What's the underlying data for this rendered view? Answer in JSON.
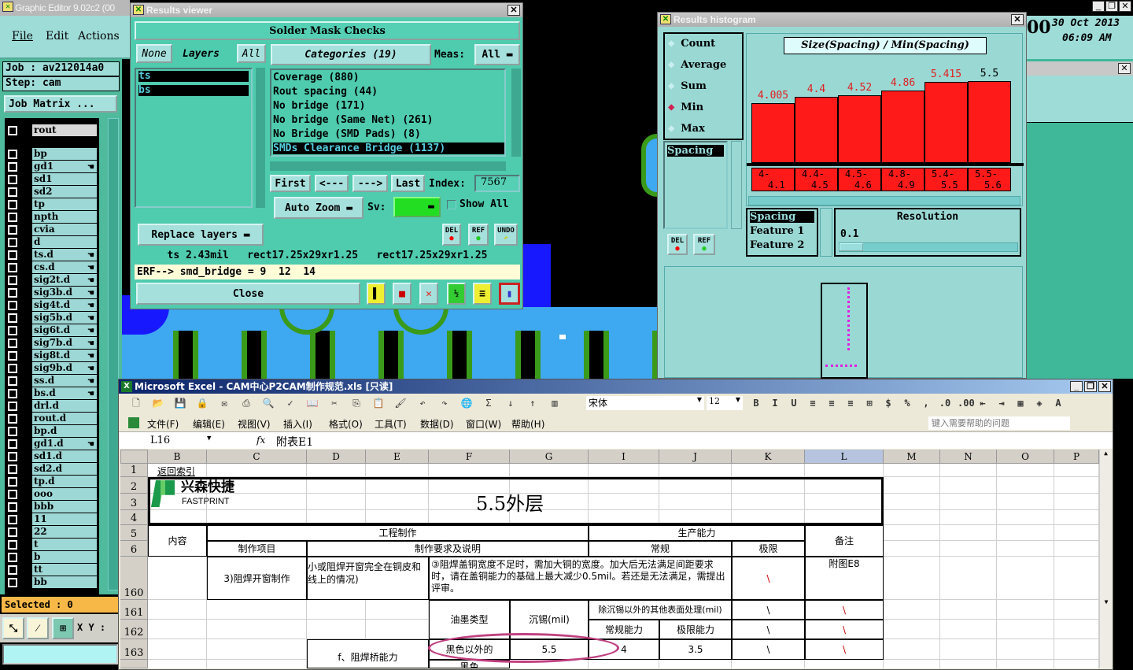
{
  "editor": {
    "title": "Graphic Editor 9.02c2 (00",
    "menu": [
      "File",
      "Edit",
      "Actions"
    ],
    "job": "Job : av212014a0",
    "step": "Step: cam",
    "job_matrix": "Job Matrix ...",
    "clock_prefix": "00",
    "date": "30 Oct 2013",
    "time": "06:09 AM",
    "selected": "Selected : 0",
    "xy_label": "X Y :",
    "layers": [
      {
        "name": "rout",
        "mark": false
      },
      {
        "name": "bp",
        "mark": false
      },
      {
        "name": "gd1",
        "mark": true
      },
      {
        "name": "sd1",
        "mark": false
      },
      {
        "name": "sd2",
        "mark": false
      },
      {
        "name": "tp",
        "mark": false
      },
      {
        "name": "npth",
        "mark": false
      },
      {
        "name": "cvia",
        "mark": false
      },
      {
        "name": "d",
        "mark": false
      },
      {
        "name": "ts.d",
        "mark": true
      },
      {
        "name": "cs.d",
        "mark": true
      },
      {
        "name": "sig2t.d",
        "mark": true
      },
      {
        "name": "sig3b.d",
        "mark": true
      },
      {
        "name": "sig4t.d",
        "mark": true
      },
      {
        "name": "sig5b.d",
        "mark": true
      },
      {
        "name": "sig6t.d",
        "mark": true
      },
      {
        "name": "sig7b.d",
        "mark": true
      },
      {
        "name": "sig8t.d",
        "mark": true
      },
      {
        "name": "sig9b.d",
        "mark": true
      },
      {
        "name": "ss.d",
        "mark": true
      },
      {
        "name": "bs.d",
        "mark": true
      },
      {
        "name": "drl.d",
        "mark": false
      },
      {
        "name": "rout.d",
        "mark": false
      },
      {
        "name": "bp.d",
        "mark": false
      },
      {
        "name": "gd1.d",
        "mark": true
      },
      {
        "name": "sd1.d",
        "mark": false
      },
      {
        "name": "sd2.d",
        "mark": false
      },
      {
        "name": "tp.d",
        "mark": false
      },
      {
        "name": "ooo",
        "mark": false
      },
      {
        "name": "bbb",
        "mark": false
      },
      {
        "name": "11",
        "mark": false
      },
      {
        "name": "22",
        "mark": false
      },
      {
        "name": "t",
        "mark": false
      },
      {
        "name": "b",
        "mark": false
      },
      {
        "name": "tt",
        "mark": false
      },
      {
        "name": "bb",
        "mark": false
      }
    ]
  },
  "results_viewer": {
    "title": "Results viewer",
    "heading": "Solder Mask Checks",
    "none": "None",
    "layers_label": "Layers",
    "all": "All",
    "layers": [
      "ts",
      "bs"
    ],
    "categories_label": "Categories (19)",
    "meas_label": "Meas:",
    "meas_value": "All",
    "categories": [
      "Coverage (880)",
      "Rout spacing (44)",
      "No bridge (171)",
      "No bridge (Same Net) (261)",
      "No Bridge (SMD Pads) (8)",
      "SMDs Clearance Bridge (1137)"
    ],
    "selected_category": "SMDs Clearance Bridge (1137)",
    "first": "First",
    "prev": "<---",
    "next": "--->",
    "last": "Last",
    "index_label": "Index:",
    "index_value": "7567",
    "auto_zoom": "Auto Zoom",
    "sv_label": "Sv:",
    "sv_color": "#22dd22",
    "show_all": "Show All",
    "replace_layers": "Replace layers",
    "del": "DEL",
    "ref": "REF",
    "undo": "UNDO",
    "info": "ts 2.43mil   rect17.25x29xr1.25   rect17.25x29xr1.25",
    "erf": "ERF--> smd_bridge = 9  12  14",
    "close": "Close"
  },
  "histogram": {
    "title": "Results histogram",
    "modes": [
      {
        "label": "Count",
        "selected": false
      },
      {
        "label": "Average",
        "selected": false
      },
      {
        "label": "Sum",
        "selected": false
      },
      {
        "label": "Min",
        "selected": true
      },
      {
        "label": "Max",
        "selected": false
      }
    ],
    "list": [
      "Spacing"
    ],
    "chart_title": "Size(Spacing) / Min(Spacing)",
    "bars": [
      {
        "value": "4.005",
        "range1": "4-",
        "range2": "4.1",
        "value_color": "#e02020"
      },
      {
        "value": "4.4",
        "range1": "4.4-",
        "range2": "4.5",
        "value_color": "#e02020"
      },
      {
        "value": "4.52",
        "range1": "4.5-",
        "range2": "4.6",
        "value_color": "#e02020"
      },
      {
        "value": "4.86",
        "range1": "4.8-",
        "range2": "4.9",
        "value_color": "#e02020"
      },
      {
        "value": "5.415",
        "range1": "5.4-",
        "range2": "5.5",
        "value_color": "#e02020"
      },
      {
        "value": "5.5",
        "range1": "5.5-",
        "range2": "5.6",
        "value_color": "#000000"
      }
    ],
    "features": [
      "Spacing",
      "Feature 1",
      "Feature 2"
    ],
    "resolution_label": "Resolution",
    "resolution_value": "0.1",
    "del": "DEL",
    "ref": "REF"
  },
  "excel": {
    "title": "Microsoft Excel - CAM中心P2CAM制作规范.xls [只读]",
    "font": "宋体",
    "size": "12",
    "menu": [
      "文件(F)",
      "编辑(E)",
      "视图(V)",
      "插入(I)",
      "格式(O)",
      "工具(T)",
      "数据(D)",
      "窗口(W)",
      "帮助(H)"
    ],
    "help_placeholder": "键入需要帮助的问题",
    "name_box": "L16",
    "fx": "fx",
    "formula": "附表E1",
    "columns": [
      "B",
      "C",
      "D",
      "E",
      "F",
      "G",
      "I",
      "J",
      "K",
      "L",
      "M",
      "N",
      "O",
      "P"
    ],
    "rows": [
      "1",
      "2",
      "3",
      "4",
      "5",
      "6",
      "160",
      "161",
      "162",
      "163"
    ],
    "cells": {
      "back_link": "返回索引",
      "logo_cn": "兴森快捷",
      "logo_en": "FASTPRINT",
      "sheet_title": "5.5外层",
      "content": "内容",
      "engineering": "工程制作",
      "capability": "生产能力",
      "remarks": "备注",
      "item": "制作项目",
      "requirement": "制作要求及说明",
      "normal": "常规",
      "limit": "极限",
      "item_160": "3)阻焊开窗制作",
      "desc_160": "小或阻焊开窗完全在铜皮和线上的情况)",
      "req_160": "③阻焊盖铜宽度不足时，需加大铜的宽度。加大后无法满足间距要求时，请在盖铜能力的基础上最大减少0.5mil。若还是无法满足，需提出评审。",
      "note_160": "附图E8",
      "ink_type": "油墨类型",
      "immersion_tin": "沉锡(mil)",
      "other_surface": "除沉锡以外的其他表面处理(mil)",
      "normal_cap": "常规能力",
      "limit_cap": "极限能力",
      "non_black": "黑色以外的",
      "v_tin": "5.5",
      "v_normal": "4",
      "v_limit": "3.5",
      "bridge_cap": "f、阻焊桥能力",
      "black": "黑色",
      "slash": "\\"
    }
  }
}
